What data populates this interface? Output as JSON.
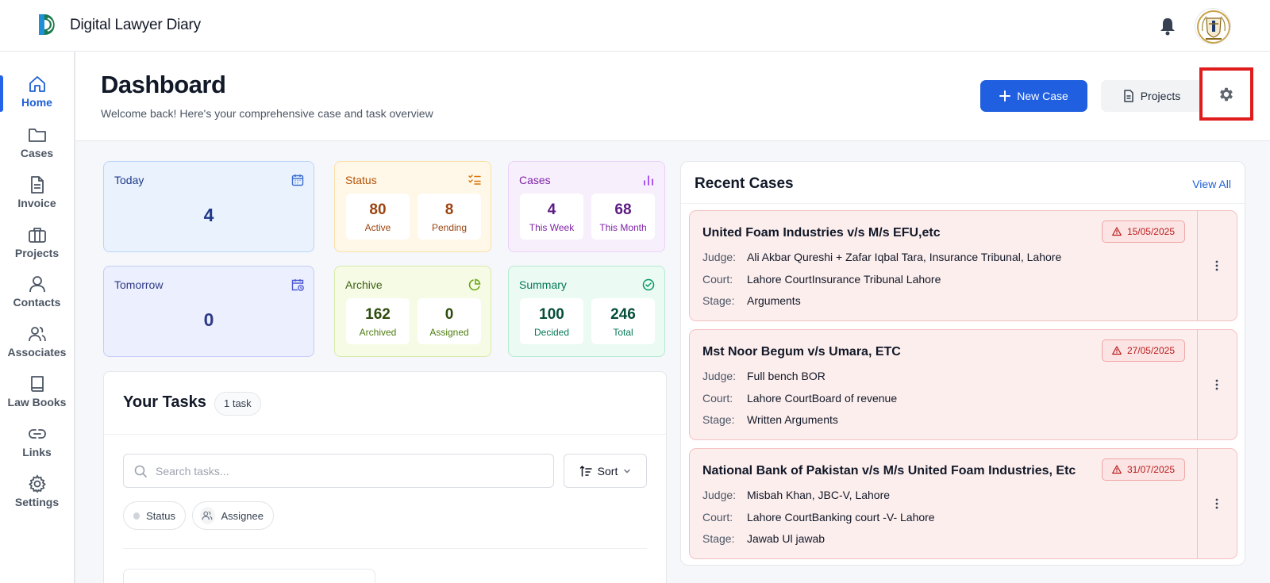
{
  "app": {
    "title": "Digital Lawyer Diary"
  },
  "sidebar": {
    "items": [
      {
        "label": "Home",
        "icon": "home-icon",
        "active": true
      },
      {
        "label": "Cases",
        "icon": "folder-icon"
      },
      {
        "label": "Invoice",
        "icon": "document-icon"
      },
      {
        "label": "Projects",
        "icon": "briefcase-icon"
      },
      {
        "label": "Contacts",
        "icon": "user-icon"
      },
      {
        "label": "Associates",
        "icon": "users-icon"
      },
      {
        "label": "Law Books",
        "icon": "book-icon"
      },
      {
        "label": "Links",
        "icon": "link-icon"
      },
      {
        "label": "Settings",
        "icon": "gear-icon"
      }
    ]
  },
  "header": {
    "title": "Dashboard",
    "subtitle": "Welcome back! Here's your comprehensive case and task overview",
    "new_case_label": "New Case",
    "projects_label": "Projects"
  },
  "stats": {
    "today": {
      "title": "Today",
      "value": "4"
    },
    "tomorrow": {
      "title": "Tomorrow",
      "value": "0"
    },
    "status": {
      "title": "Status",
      "a_value": "80",
      "a_label": "Active",
      "b_value": "8",
      "b_label": "Pending"
    },
    "cases": {
      "title": "Cases",
      "a_value": "4",
      "a_label": "This Week",
      "b_value": "68",
      "b_label": "This Month"
    },
    "archive": {
      "title": "Archive",
      "a_value": "162",
      "a_label": "Archived",
      "b_value": "0",
      "b_label": "Assigned"
    },
    "summary": {
      "title": "Summary",
      "a_value": "100",
      "a_label": "Decided",
      "b_value": "246",
      "b_label": "Total"
    }
  },
  "tasks": {
    "title": "Your Tasks",
    "count_badge": "1 task",
    "search_placeholder": "Search tasks...",
    "sort_label": "Sort",
    "filters": {
      "status": "Status",
      "assignee": "Assignee"
    }
  },
  "recent_cases": {
    "title": "Recent Cases",
    "view_all": "View All",
    "labels": {
      "judge": "Judge:",
      "court": "Court:",
      "stage": "Stage:"
    },
    "items": [
      {
        "title": "United Foam Industries v/s M/s EFU,etc",
        "date": "15/05/2025",
        "judge": "Ali Akbar Qureshi + Zafar Iqbal Tara, Insurance Tribunal, Lahore",
        "court": "Lahore CourtInsurance Tribunal Lahore",
        "stage": "Arguments"
      },
      {
        "title": "Mst Noor Begum v/s Umara, ETC",
        "date": "27/05/2025",
        "judge": "Full bench BOR",
        "court": "Lahore CourtBoard of revenue",
        "stage": "Written Arguments"
      },
      {
        "title": "National Bank of Pakistan v/s M/s United Foam Industries, Etc",
        "date": "31/07/2025",
        "judge": "Misbah Khan, JBC-V, Lahore",
        "court": "Lahore CourtBanking court -V- Lahore",
        "stage": "Jawab Ul jawab"
      }
    ]
  },
  "colors": {
    "accent": "#1f5fe0",
    "highlight": "#e01b1b",
    "overdue": "#b91c1c"
  }
}
